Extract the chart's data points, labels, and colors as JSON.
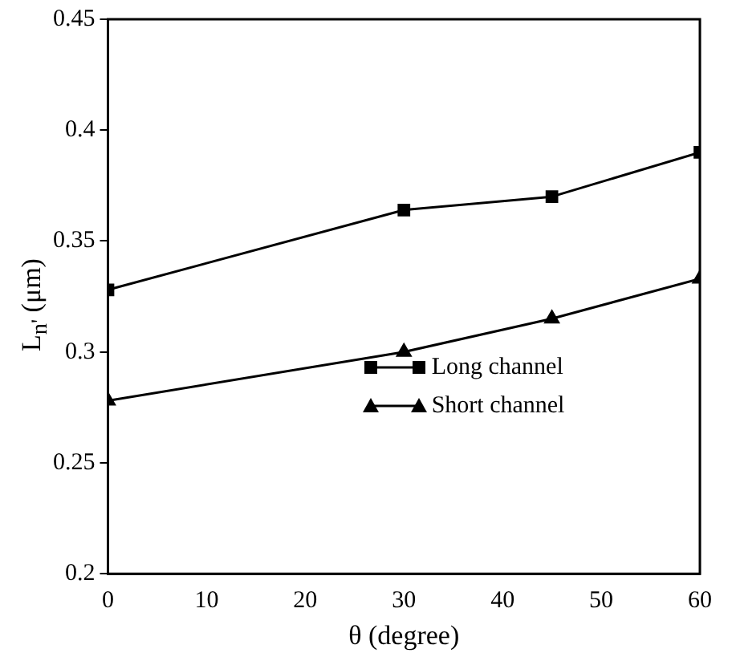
{
  "chart_data": {
    "type": "line",
    "xlabel": "θ (degree)",
    "ylabel": "L$_{n'}$ (μm)",
    "x": [
      0,
      30,
      45,
      60
    ],
    "series": [
      {
        "name": "Long channel",
        "color": "#000000",
        "marker": "square",
        "values": [
          0.328,
          0.364,
          0.37,
          0.39
        ]
      },
      {
        "name": "Short channel",
        "color": "#000000",
        "marker": "triangle",
        "values": [
          0.278,
          0.3,
          0.315,
          0.333
        ]
      }
    ],
    "xlim": [
      0,
      60
    ],
    "xticks": [
      0,
      10,
      20,
      30,
      40,
      50,
      60
    ],
    "ylim": [
      0.2,
      0.45
    ],
    "yticks": [
      0.2,
      0.25,
      0.3,
      0.35,
      0.4,
      0.45
    ],
    "grid": false,
    "legend": "bottom right",
    "line_style": "solid"
  }
}
